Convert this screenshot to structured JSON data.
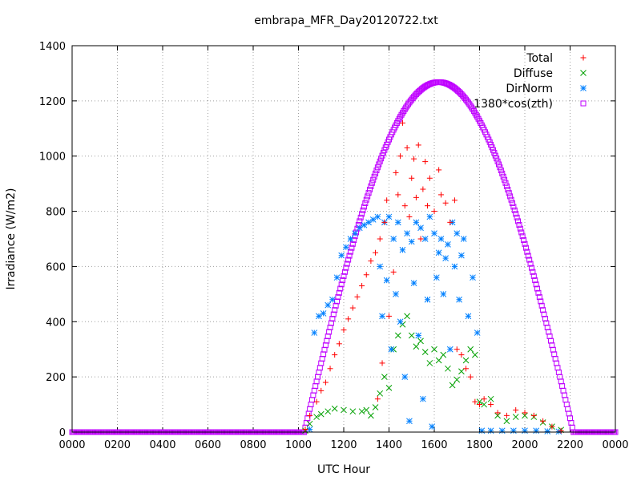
{
  "chart_data": {
    "type": "scatter",
    "title": "embrapa_MFR_Day20120722.txt",
    "xlabel": "UTC Hour",
    "ylabel": "Irradiance (W/m2)",
    "xlim": [
      0,
      24
    ],
    "ylim": [
      0,
      1400
    ],
    "x_ticks": [
      0,
      2,
      4,
      6,
      8,
      10,
      12,
      14,
      16,
      18,
      20,
      22,
      24
    ],
    "x_tick_labels": [
      "0000",
      "0200",
      "0400",
      "0600",
      "0800",
      "1000",
      "1200",
      "1400",
      "1600",
      "1800",
      "2000",
      "2200",
      "0000"
    ],
    "y_ticks": [
      0,
      200,
      400,
      600,
      800,
      1000,
      1200,
      1400
    ],
    "y_tick_labels": [
      "0",
      "200",
      "400",
      "600",
      "800",
      "1000",
      "1200",
      "1400"
    ],
    "grid": true,
    "legend_position": "top-right",
    "series": [
      {
        "name": "Total",
        "color": "#ff0000",
        "marker": "plus",
        "points": [
          [
            10.3,
            10
          ],
          [
            10.5,
            60
          ],
          [
            10.8,
            110
          ],
          [
            11.0,
            150
          ],
          [
            11.2,
            180
          ],
          [
            11.4,
            230
          ],
          [
            11.6,
            280
          ],
          [
            11.8,
            320
          ],
          [
            12.0,
            370
          ],
          [
            12.2,
            410
          ],
          [
            12.4,
            450
          ],
          [
            12.6,
            490
          ],
          [
            12.8,
            530
          ],
          [
            13.0,
            570
          ],
          [
            13.2,
            620
          ],
          [
            13.4,
            650
          ],
          [
            13.5,
            120
          ],
          [
            13.6,
            700
          ],
          [
            13.7,
            250
          ],
          [
            13.8,
            760
          ],
          [
            13.9,
            840
          ],
          [
            14.0,
            420
          ],
          [
            14.2,
            580
          ],
          [
            14.3,
            940
          ],
          [
            14.4,
            860
          ],
          [
            14.5,
            1000
          ],
          [
            14.6,
            1120
          ],
          [
            14.7,
            820
          ],
          [
            14.8,
            1030
          ],
          [
            14.9,
            780
          ],
          [
            15.0,
            920
          ],
          [
            15.1,
            990
          ],
          [
            15.2,
            850
          ],
          [
            15.3,
            1040
          ],
          [
            15.4,
            700
          ],
          [
            15.5,
            880
          ],
          [
            15.6,
            980
          ],
          [
            15.7,
            820
          ],
          [
            15.8,
            920
          ],
          [
            16.0,
            800
          ],
          [
            16.2,
            950
          ],
          [
            16.3,
            860
          ],
          [
            16.5,
            830
          ],
          [
            16.7,
            760
          ],
          [
            16.9,
            840
          ],
          [
            17.0,
            300
          ],
          [
            17.2,
            280
          ],
          [
            17.4,
            230
          ],
          [
            17.6,
            200
          ],
          [
            17.8,
            110
          ],
          [
            18.0,
            100
          ],
          [
            18.2,
            120
          ],
          [
            18.5,
            100
          ],
          [
            18.8,
            70
          ],
          [
            19.2,
            60
          ],
          [
            19.6,
            80
          ],
          [
            20.0,
            70
          ],
          [
            20.4,
            60
          ],
          [
            20.8,
            40
          ],
          [
            21.2,
            20
          ],
          [
            21.6,
            5
          ]
        ]
      },
      {
        "name": "Diffuse",
        "color": "#00a000",
        "marker": "cross",
        "points": [
          [
            10.3,
            5
          ],
          [
            10.5,
            30
          ],
          [
            10.8,
            55
          ],
          [
            11.0,
            65
          ],
          [
            11.3,
            75
          ],
          [
            11.6,
            85
          ],
          [
            12.0,
            80
          ],
          [
            12.4,
            75
          ],
          [
            12.8,
            75
          ],
          [
            13.0,
            80
          ],
          [
            13.2,
            60
          ],
          [
            13.4,
            90
          ],
          [
            13.6,
            140
          ],
          [
            13.8,
            200
          ],
          [
            14.0,
            160
          ],
          [
            14.2,
            300
          ],
          [
            14.4,
            350
          ],
          [
            14.6,
            390
          ],
          [
            14.8,
            420
          ],
          [
            15.0,
            350
          ],
          [
            15.2,
            310
          ],
          [
            15.4,
            330
          ],
          [
            15.6,
            290
          ],
          [
            15.8,
            250
          ],
          [
            16.0,
            300
          ],
          [
            16.2,
            260
          ],
          [
            16.4,
            280
          ],
          [
            16.6,
            230
          ],
          [
            16.8,
            170
          ],
          [
            17.0,
            190
          ],
          [
            17.2,
            220
          ],
          [
            17.4,
            260
          ],
          [
            17.6,
            300
          ],
          [
            17.8,
            280
          ],
          [
            18.0,
            110
          ],
          [
            18.2,
            100
          ],
          [
            18.5,
            120
          ],
          [
            18.8,
            60
          ],
          [
            19.2,
            40
          ],
          [
            19.6,
            55
          ],
          [
            20.0,
            60
          ],
          [
            20.4,
            55
          ],
          [
            20.8,
            35
          ],
          [
            21.2,
            20
          ],
          [
            21.6,
            8
          ]
        ]
      },
      {
        "name": "DirNorm",
        "color": "#0080ff",
        "marker": "star",
        "points": [
          [
            10.5,
            10
          ],
          [
            10.7,
            360
          ],
          [
            10.9,
            420
          ],
          [
            11.1,
            430
          ],
          [
            11.3,
            460
          ],
          [
            11.5,
            480
          ],
          [
            11.7,
            560
          ],
          [
            11.9,
            640
          ],
          [
            12.1,
            670
          ],
          [
            12.3,
            700
          ],
          [
            12.5,
            720
          ],
          [
            12.7,
            740
          ],
          [
            12.9,
            750
          ],
          [
            13.1,
            760
          ],
          [
            13.3,
            770
          ],
          [
            13.5,
            780
          ],
          [
            13.6,
            600
          ],
          [
            13.7,
            420
          ],
          [
            13.8,
            760
          ],
          [
            13.9,
            550
          ],
          [
            14.0,
            780
          ],
          [
            14.1,
            300
          ],
          [
            14.2,
            700
          ],
          [
            14.3,
            500
          ],
          [
            14.4,
            760
          ],
          [
            14.5,
            400
          ],
          [
            14.6,
            660
          ],
          [
            14.7,
            200
          ],
          [
            14.8,
            720
          ],
          [
            14.9,
            40
          ],
          [
            15.0,
            690
          ],
          [
            15.1,
            540
          ],
          [
            15.2,
            760
          ],
          [
            15.3,
            350
          ],
          [
            15.4,
            740
          ],
          [
            15.5,
            120
          ],
          [
            15.6,
            700
          ],
          [
            15.7,
            480
          ],
          [
            15.8,
            780
          ],
          [
            15.9,
            20
          ],
          [
            16.0,
            720
          ],
          [
            16.1,
            560
          ],
          [
            16.2,
            650
          ],
          [
            16.3,
            700
          ],
          [
            16.4,
            500
          ],
          [
            16.5,
            630
          ],
          [
            16.6,
            680
          ],
          [
            16.7,
            300
          ],
          [
            16.8,
            760
          ],
          [
            16.9,
            600
          ],
          [
            17.0,
            720
          ],
          [
            17.1,
            480
          ],
          [
            17.2,
            640
          ],
          [
            17.3,
            700
          ],
          [
            17.5,
            420
          ],
          [
            17.7,
            560
          ],
          [
            17.9,
            360
          ],
          [
            18.1,
            5
          ],
          [
            18.5,
            5
          ],
          [
            19.0,
            5
          ],
          [
            19.5,
            5
          ],
          [
            20.0,
            5
          ],
          [
            20.5,
            5
          ],
          [
            21.0,
            3
          ],
          [
            21.5,
            2
          ]
        ]
      },
      {
        "name": "1380*cos(zth)",
        "color": "#bf00ff",
        "marker": "square",
        "function": {
          "peak": 1268,
          "peak_hour": 16.2,
          "sunrise_hour": 10.25,
          "sunset_hour": 22.15,
          "step_hours": 0.05
        }
      }
    ]
  }
}
